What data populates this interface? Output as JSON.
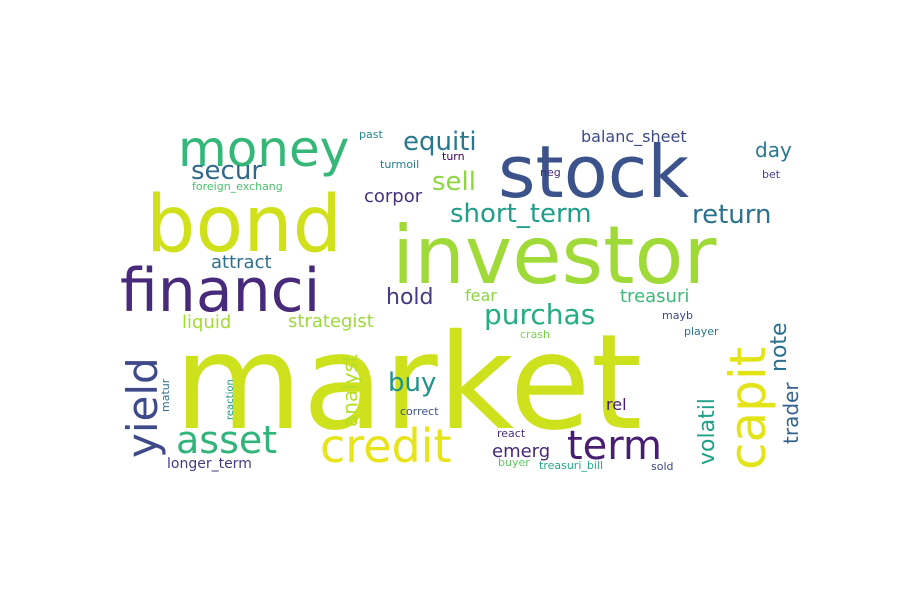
{
  "wordcloud": {
    "words": [
      {
        "text": "market",
        "color": "#cde11d"
      },
      {
        "text": "investor",
        "color": "#a0da39"
      },
      {
        "text": "stock",
        "color": "#3b528b"
      },
      {
        "text": "bond",
        "color": "#d0e11c"
      },
      {
        "text": "financi",
        "color": "#472a7a"
      },
      {
        "text": "money",
        "color": "#35b779"
      },
      {
        "text": "capit",
        "color": "#e2e418"
      },
      {
        "text": "credit",
        "color": "#e7e419"
      },
      {
        "text": "term",
        "color": "#481f70"
      },
      {
        "text": "asset",
        "color": "#31b57b"
      },
      {
        "text": "yield",
        "color": "#3e4989"
      },
      {
        "text": "equiti",
        "color": "#2a788e"
      },
      {
        "text": "sell",
        "color": "#8ed645"
      },
      {
        "text": "secur",
        "color": "#31688e"
      },
      {
        "text": "short_term",
        "color": "#1f9e89"
      },
      {
        "text": "return",
        "color": "#2c728e"
      },
      {
        "text": "purchas",
        "color": "#26ad81"
      },
      {
        "text": "buy",
        "color": "#21918c"
      },
      {
        "text": "hold",
        "color": "#443983"
      },
      {
        "text": "volatil",
        "color": "#1fa187"
      },
      {
        "text": "note",
        "color": "#2d708e"
      },
      {
        "text": "trader",
        "color": "#33638d"
      },
      {
        "text": "analyst",
        "color": "#b5de2b"
      },
      {
        "text": "strategist",
        "color": "#9bd93c"
      },
      {
        "text": "liquid",
        "color": "#a5db36"
      },
      {
        "text": "attract",
        "color": "#2d708e"
      },
      {
        "text": "treasuri",
        "color": "#3aba76"
      },
      {
        "text": "day",
        "color": "#2a788e"
      },
      {
        "text": "balanc_sheet",
        "color": "#3e4989"
      },
      {
        "text": "corpor",
        "color": "#46327e"
      },
      {
        "text": "fear",
        "color": "#8bd646"
      },
      {
        "text": "emerg",
        "color": "#482878"
      },
      {
        "text": "rel",
        "color": "#481f70"
      },
      {
        "text": "longer_term",
        "color": "#443a83"
      },
      {
        "text": "foreign_exchang",
        "color": "#4ac16d"
      },
      {
        "text": "turmoil",
        "color": "#287c8e"
      },
      {
        "text": "turn",
        "color": "#440154"
      },
      {
        "text": "past",
        "color": "#25858e"
      },
      {
        "text": "neg",
        "color": "#482979"
      },
      {
        "text": "bet",
        "color": "#433e85"
      },
      {
        "text": "mayb",
        "color": "#414487"
      },
      {
        "text": "player",
        "color": "#2c728e"
      },
      {
        "text": "crash",
        "color": "#7ad151"
      },
      {
        "text": "correct",
        "color": "#3b528b"
      },
      {
        "text": "react",
        "color": "#472f7d"
      },
      {
        "text": "buyer",
        "color": "#5ec962"
      },
      {
        "text": "treasuri_bill",
        "color": "#22a884"
      },
      {
        "text": "sold",
        "color": "#3f4788"
      },
      {
        "text": "matur",
        "color": "#2e6e8e"
      },
      {
        "text": "reaction",
        "color": "#1f9a8a"
      }
    ]
  }
}
